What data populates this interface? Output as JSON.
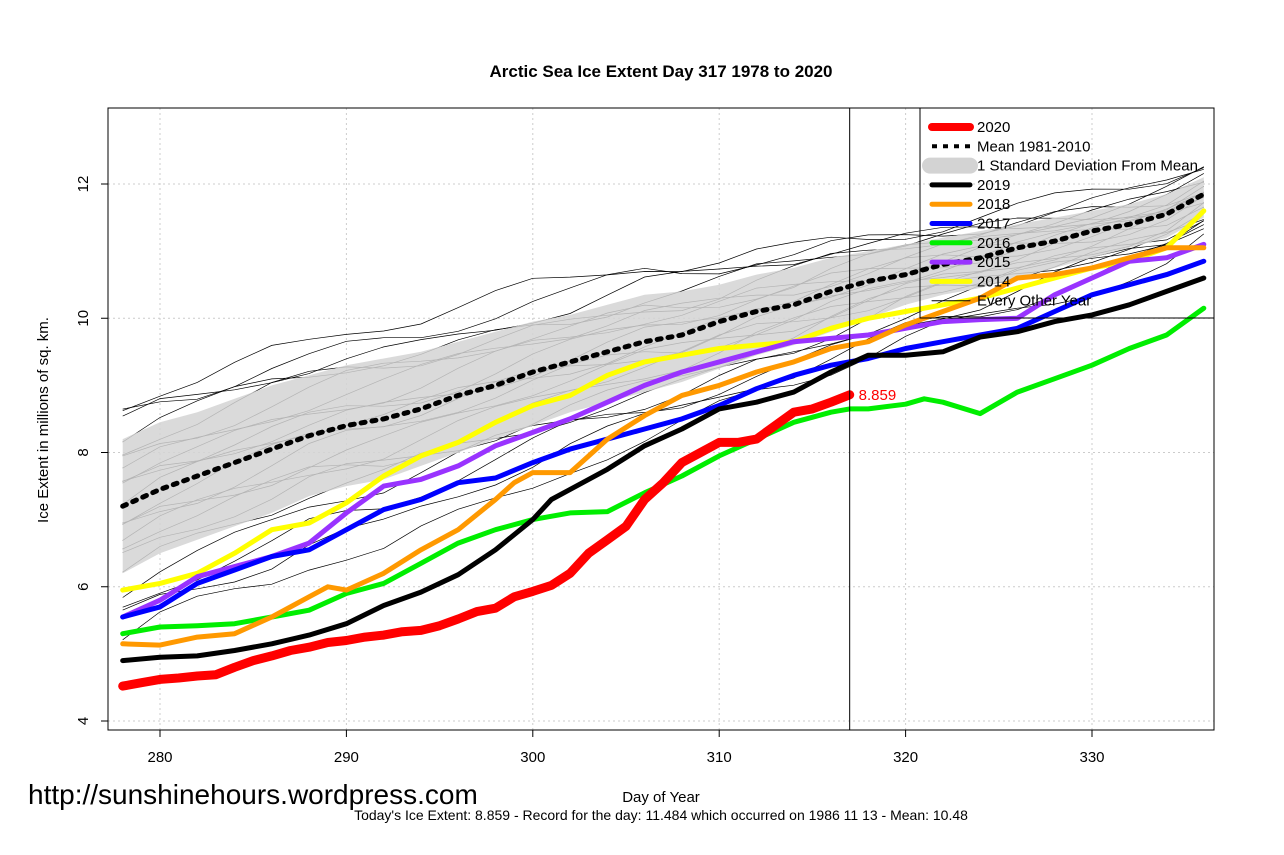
{
  "chart_data": {
    "type": "line",
    "title": "Arctic Sea Ice Extent Day 317 1978 to 2020",
    "xlabel": "Day of Year",
    "ylabel": "Ice Extent in millions of sq. km.",
    "xlim": [
      278,
      336
    ],
    "ylim": [
      4,
      13
    ],
    "x_ticks": [
      280,
      290,
      300,
      310,
      320,
      330
    ],
    "y_ticks": [
      4,
      6,
      8,
      10,
      12
    ],
    "grid": true,
    "legend_position": "top-right",
    "current_day": 317,
    "annotation": {
      "x": 317,
      "y": 8.859,
      "text": "8.859",
      "color": "#ff0000"
    },
    "mean_line": {
      "name": "Mean 1981-2010",
      "color": "#000000",
      "x": [
        278,
        280,
        282,
        284,
        286,
        288,
        290,
        292,
        294,
        296,
        298,
        300,
        302,
        304,
        306,
        308,
        310,
        312,
        314,
        316,
        318,
        320,
        322,
        324,
        326,
        328,
        330,
        332,
        334,
        336
      ],
      "values": [
        7.2,
        7.45,
        7.65,
        7.85,
        8.05,
        8.25,
        8.4,
        8.5,
        8.65,
        8.85,
        9.0,
        9.2,
        9.35,
        9.5,
        9.65,
        9.75,
        9.95,
        10.1,
        10.2,
        10.4,
        10.55,
        10.65,
        10.8,
        10.9,
        11.05,
        11.15,
        11.3,
        11.4,
        11.55,
        11.85
      ]
    },
    "std_band": {
      "name": "1 Standard Deviation From Mean",
      "color": "#d3d3d3",
      "x": [
        278,
        280,
        282,
        284,
        286,
        288,
        290,
        292,
        294,
        296,
        298,
        300,
        302,
        304,
        306,
        308,
        310,
        312,
        314,
        316,
        318,
        320,
        322,
        324,
        326,
        328,
        330,
        332,
        334,
        336
      ],
      "upper": [
        8.2,
        8.45,
        8.6,
        8.8,
        9.0,
        9.15,
        9.3,
        9.4,
        9.5,
        9.65,
        9.8,
        9.95,
        10.05,
        10.2,
        10.35,
        10.4,
        10.5,
        10.65,
        10.75,
        10.9,
        11.0,
        11.1,
        11.2,
        11.3,
        11.4,
        11.5,
        11.6,
        11.7,
        11.85,
        12.1
      ],
      "lower": [
        6.2,
        6.5,
        6.7,
        6.9,
        7.1,
        7.35,
        7.5,
        7.6,
        7.8,
        8.0,
        8.2,
        8.4,
        8.6,
        8.75,
        8.9,
        9.05,
        9.25,
        9.45,
        9.6,
        9.8,
        10.0,
        10.2,
        10.35,
        10.45,
        10.6,
        10.75,
        10.9,
        11.05,
        11.2,
        11.5
      ]
    },
    "series": [
      {
        "name": "2020",
        "color": "#ff0000",
        "width": 9,
        "x": [
          278,
          279,
          280,
          281,
          282,
          283,
          284,
          285,
          286,
          287,
          288,
          289,
          290,
          291,
          292,
          293,
          294,
          295,
          296,
          297,
          298,
          299,
          300,
          301,
          302,
          303,
          304,
          305,
          306,
          307,
          308,
          309,
          310,
          311,
          312,
          313,
          314,
          315,
          316,
          317
        ],
        "values": [
          4.52,
          4.57,
          4.62,
          4.64,
          4.67,
          4.69,
          4.8,
          4.9,
          4.97,
          5.05,
          5.1,
          5.17,
          5.2,
          5.25,
          5.28,
          5.33,
          5.35,
          5.42,
          5.52,
          5.63,
          5.68,
          5.85,
          5.93,
          6.02,
          6.2,
          6.5,
          6.7,
          6.9,
          7.3,
          7.55,
          7.85,
          8.0,
          8.15,
          8.15,
          8.2,
          8.4,
          8.6,
          8.65,
          8.75,
          8.859
        ]
      },
      {
        "name": "2019",
        "color": "#000000",
        "width": 5,
        "x": [
          278,
          280,
          282,
          284,
          286,
          288,
          290,
          292,
          294,
          296,
          298,
          300,
          301,
          302,
          304,
          306,
          308,
          310,
          312,
          314,
          316,
          318,
          320,
          322,
          324,
          326,
          328,
          330,
          332,
          334,
          336
        ],
        "values": [
          4.9,
          4.95,
          4.97,
          5.05,
          5.15,
          5.28,
          5.45,
          5.72,
          5.92,
          6.18,
          6.55,
          7.0,
          7.3,
          7.45,
          7.75,
          8.1,
          8.35,
          8.65,
          8.75,
          8.9,
          9.2,
          9.45,
          9.45,
          9.5,
          9.72,
          9.8,
          9.95,
          10.05,
          10.2,
          10.4,
          10.6
        ]
      },
      {
        "name": "2018",
        "color": "#ff9900",
        "width": 5,
        "x": [
          278,
          280,
          282,
          284,
          286,
          288,
          289,
          290,
          292,
          294,
          296,
          298,
          299,
          300,
          301,
          302,
          304,
          306,
          308,
          310,
          312,
          314,
          316,
          318,
          320,
          322,
          324,
          326,
          328,
          330,
          332,
          334,
          336
        ],
        "values": [
          5.15,
          5.13,
          5.25,
          5.3,
          5.55,
          5.85,
          6.0,
          5.95,
          6.2,
          6.55,
          6.85,
          7.3,
          7.55,
          7.7,
          7.7,
          7.7,
          8.2,
          8.55,
          8.85,
          9.0,
          9.2,
          9.35,
          9.55,
          9.65,
          9.9,
          10.1,
          10.3,
          10.6,
          10.65,
          10.75,
          10.9,
          11.05,
          11.05
        ]
      },
      {
        "name": "2017",
        "color": "#0000ff",
        "width": 5,
        "x": [
          278,
          280,
          282,
          284,
          286,
          288,
          290,
          292,
          294,
          296,
          298,
          300,
          302,
          304,
          306,
          308,
          310,
          312,
          314,
          316,
          318,
          320,
          322,
          324,
          326,
          328,
          330,
          332,
          334,
          336
        ],
        "values": [
          5.55,
          5.7,
          6.05,
          6.25,
          6.45,
          6.55,
          6.85,
          7.15,
          7.3,
          7.55,
          7.62,
          7.85,
          8.05,
          8.2,
          8.35,
          8.5,
          8.7,
          8.95,
          9.15,
          9.3,
          9.4,
          9.55,
          9.65,
          9.75,
          9.85,
          10.1,
          10.35,
          10.5,
          10.65,
          10.85
        ]
      },
      {
        "name": "2016",
        "color": "#00ee00",
        "width": 5,
        "x": [
          278,
          280,
          282,
          284,
          286,
          288,
          290,
          292,
          294,
          296,
          298,
          300,
          302,
          304,
          306,
          308,
          310,
          312,
          314,
          316,
          317,
          318,
          320,
          321,
          322,
          324,
          326,
          328,
          330,
          332,
          334,
          336
        ],
        "values": [
          5.3,
          5.4,
          5.42,
          5.45,
          5.55,
          5.65,
          5.9,
          6.05,
          6.35,
          6.65,
          6.85,
          7.0,
          7.1,
          7.12,
          7.4,
          7.65,
          7.95,
          8.2,
          8.45,
          8.6,
          8.65,
          8.65,
          8.72,
          8.8,
          8.75,
          8.58,
          8.9,
          9.1,
          9.3,
          9.55,
          9.75,
          10.15
        ]
      },
      {
        "name": "2015",
        "color": "#9933ff",
        "width": 5,
        "x": [
          278,
          280,
          282,
          284,
          286,
          288,
          290,
          292,
          293,
          294,
          296,
          298,
          300,
          302,
          304,
          306,
          308,
          310,
          312,
          314,
          316,
          318,
          320,
          322,
          324,
          326,
          328,
          330,
          332,
          334,
          336
        ],
        "values": [
          5.55,
          5.8,
          6.15,
          6.3,
          6.45,
          6.65,
          7.1,
          7.5,
          7.55,
          7.6,
          7.8,
          8.1,
          8.3,
          8.5,
          8.75,
          9.0,
          9.2,
          9.35,
          9.5,
          9.65,
          9.7,
          9.75,
          9.85,
          9.95,
          9.98,
          10.0,
          10.35,
          10.6,
          10.85,
          10.9,
          11.1
        ]
      },
      {
        "name": "2014",
        "color": "#ffff00",
        "width": 5,
        "x": [
          278,
          280,
          282,
          284,
          286,
          288,
          290,
          292,
          294,
          296,
          298,
          300,
          302,
          304,
          306,
          308,
          310,
          312,
          314,
          316,
          318,
          320,
          322,
          324,
          326,
          328,
          330,
          332,
          334,
          336
        ],
        "values": [
          5.95,
          6.05,
          6.2,
          6.5,
          6.85,
          6.95,
          7.25,
          7.65,
          7.95,
          8.15,
          8.45,
          8.7,
          8.85,
          9.15,
          9.35,
          9.45,
          9.55,
          9.6,
          9.65,
          9.85,
          10.0,
          10.1,
          10.2,
          10.3,
          10.45,
          10.6,
          10.75,
          10.85,
          11.05,
          11.6
        ]
      }
    ],
    "legend": [
      {
        "label": "2020",
        "color": "#ff0000",
        "style": "thick"
      },
      {
        "label": "Mean 1981-2010",
        "color": "#000000",
        "style": "dotted"
      },
      {
        "label": "1 Standard Deviation From Mean",
        "color": "#d3d3d3",
        "style": "band"
      },
      {
        "label": "2019",
        "color": "#000000",
        "style": "solid"
      },
      {
        "label": "2018",
        "color": "#ff9900",
        "style": "solid"
      },
      {
        "label": "2017",
        "color": "#0000ff",
        "style": "solid"
      },
      {
        "label": "2016",
        "color": "#00ee00",
        "style": "solid"
      },
      {
        "label": "2015",
        "color": "#9933ff",
        "style": "solid"
      },
      {
        "label": "2014",
        "color": "#ffff00",
        "style": "solid"
      },
      {
        "label": "Every Other Year",
        "color": "#000000",
        "style": "thin"
      }
    ]
  },
  "watermark": "http://sunshinehours.wordpress.com",
  "caption": "Today's Ice Extent: 8.859  - Record for the day: 11.484 which occurred on 1986 11 13  - Mean: 10.48"
}
